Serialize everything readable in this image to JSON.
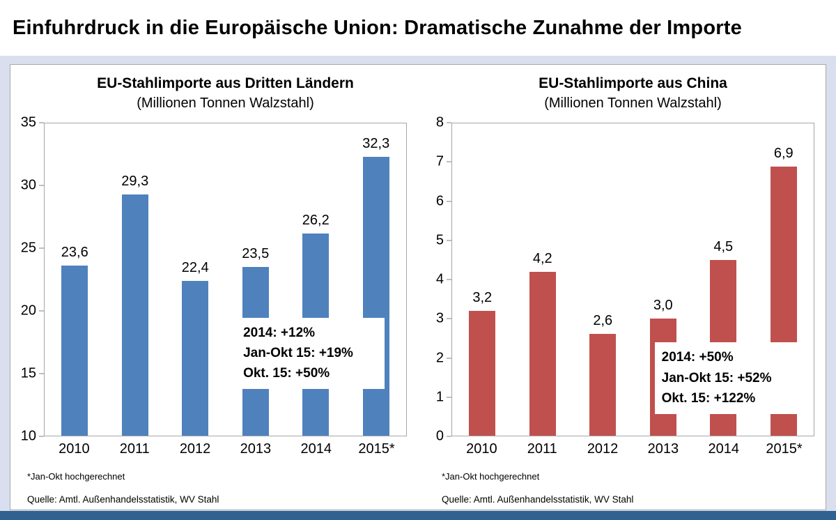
{
  "page": {
    "title": "Einfuhrdruck in die Europäische Union: Dramatische Zunahme der Importe"
  },
  "colors": {
    "background": "#dadfef",
    "left_bar": "#4f81bd",
    "right_bar": "#c0504d",
    "bottom_strip": "#30618f"
  },
  "chart_data": [
    {
      "type": "bar",
      "title": "EU-Stahlimporte aus Dritten Ländern",
      "subtitle": "(Millionen Tonnen Walzstahl)",
      "categories": [
        "2010",
        "2011",
        "2012",
        "2013",
        "2014",
        "2015*"
      ],
      "values": [
        23.6,
        29.3,
        22.4,
        23.5,
        26.2,
        32.3
      ],
      "value_labels": [
        "23,6",
        "29,3",
        "22,4",
        "23,5",
        "26,2",
        "32,3"
      ],
      "ylim": [
        10,
        35
      ],
      "yticks": [
        10,
        15,
        20,
        25,
        30,
        35
      ],
      "bar_color": "#4f81bd",
      "grid": false,
      "legend": "none",
      "annotation_lines": [
        "2014: +12%",
        "Jan-Okt 15: +19%",
        "Okt. 15: +50%"
      ],
      "footnote": "*Jan-Okt hochgerechnet",
      "source": "Quelle: Amtl. Außenhandelsstatistik, WV Stahl"
    },
    {
      "type": "bar",
      "title": "EU-Stahlimporte aus China",
      "subtitle": "(Millionen Tonnen Walzstahl)",
      "categories": [
        "2010",
        "2011",
        "2012",
        "2013",
        "2014",
        "2015*"
      ],
      "values": [
        3.2,
        4.2,
        2.6,
        3.0,
        4.5,
        6.9
      ],
      "value_labels": [
        "3,2",
        "4,2",
        "2,6",
        "3,0",
        "4,5",
        "6,9"
      ],
      "ylim": [
        0,
        8
      ],
      "yticks": [
        0,
        1,
        2,
        3,
        4,
        5,
        6,
        7,
        8
      ],
      "bar_color": "#c0504d",
      "grid": false,
      "legend": "none",
      "annotation_lines": [
        "2014: +50%",
        "Jan-Okt 15: +52%",
        "Okt. 15: +122%"
      ],
      "footnote": "*Jan-Okt hochgerechnet",
      "source": "Quelle: Amtl. Außenhandelsstatistik, WV Stahl"
    }
  ]
}
